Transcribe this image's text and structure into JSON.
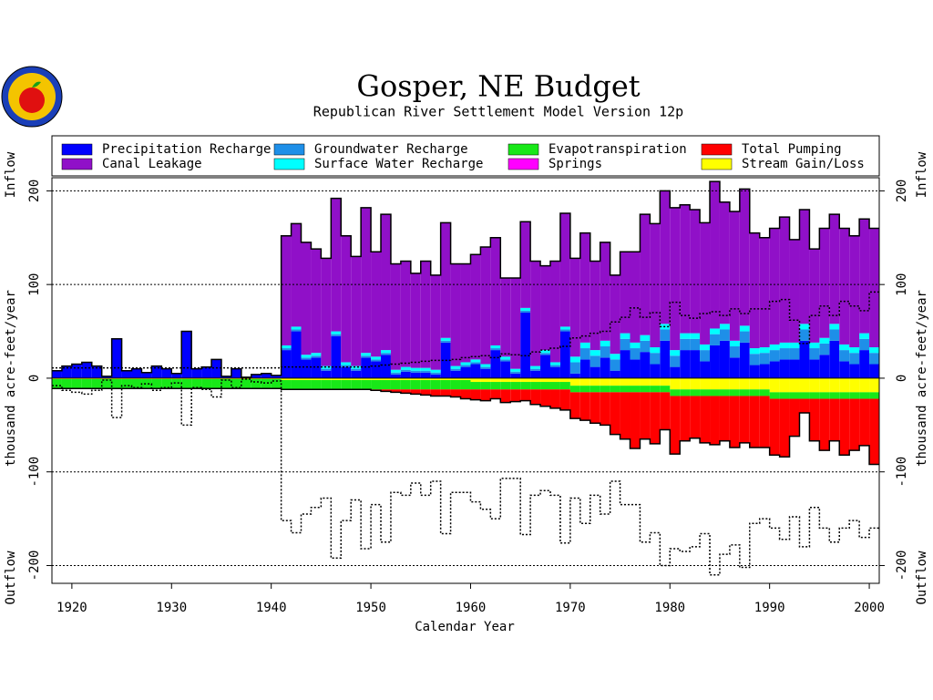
{
  "chart_data": {
    "type": "bar",
    "title": "Gosper, NE Budget",
    "subtitle": "Republican River Settlement Model Version 12p",
    "x_label": "Calendar Year",
    "y_label": "thousand acre-feet/year",
    "inflow_label": "Inflow",
    "outflow_label": "Outflow",
    "x": [
      1918,
      1919,
      1920,
      1921,
      1922,
      1923,
      1924,
      1925,
      1926,
      1927,
      1928,
      1929,
      1930,
      1931,
      1932,
      1933,
      1934,
      1935,
      1936,
      1937,
      1938,
      1939,
      1940,
      1941,
      1942,
      1943,
      1944,
      1945,
      1946,
      1947,
      1948,
      1949,
      1950,
      1951,
      1952,
      1953,
      1954,
      1955,
      1956,
      1957,
      1958,
      1959,
      1960,
      1961,
      1962,
      1963,
      1964,
      1965,
      1966,
      1967,
      1968,
      1969,
      1970,
      1971,
      1972,
      1973,
      1974,
      1975,
      1976,
      1977,
      1978,
      1979,
      1980,
      1981,
      1982,
      1983,
      1984,
      1985,
      1986,
      1987,
      1988,
      1989,
      1990,
      1991,
      1992,
      1993,
      1994,
      1995,
      1996,
      1997,
      1998,
      1999,
      2000
    ],
    "xlim": [
      1918,
      2001
    ],
    "xticks": [
      1920,
      1930,
      1940,
      1950,
      1960,
      1970,
      1980,
      1990,
      2000
    ],
    "ylim": [
      -219,
      214
    ],
    "yticks": [
      -200,
      -100,
      0,
      100,
      200
    ],
    "grid": true,
    "series": [
      {
        "name": "Precipitation Recharge",
        "color": "#0000ff",
        "values": [
          8,
          13,
          15,
          17,
          13,
          2,
          42,
          8,
          10,
          6,
          13,
          10,
          5,
          50,
          10,
          12,
          20,
          2,
          10,
          1,
          4,
          5,
          3,
          30,
          50,
          20,
          22,
          8,
          45,
          12,
          8,
          22,
          18,
          25,
          4,
          7,
          6,
          6,
          4,
          38,
          8,
          12,
          15,
          10,
          30,
          18,
          5,
          70,
          8,
          25,
          12,
          50,
          5,
          20,
          12,
          22,
          8,
          30,
          20,
          28,
          15,
          40,
          12,
          30,
          30,
          18,
          35,
          40,
          22,
          38,
          14,
          15,
          18,
          20,
          20,
          40,
          20,
          25,
          40,
          18,
          15,
          30,
          15
        ]
      },
      {
        "name": "Groundwater Recharge",
        "color": "#1e8fe8",
        "values": [
          0,
          0,
          0,
          0,
          0,
          0,
          0,
          0,
          0,
          0,
          0,
          0,
          0,
          0,
          0,
          0,
          0,
          0,
          0,
          0,
          0,
          0,
          0,
          2,
          2,
          2,
          2,
          2,
          2,
          2,
          2,
          2,
          2,
          2,
          2,
          2,
          2,
          2,
          2,
          2,
          2,
          2,
          2,
          2,
          2,
          2,
          2,
          2,
          2,
          2,
          2,
          2,
          12,
          12,
          12,
          12,
          12,
          12,
          12,
          12,
          12,
          12,
          12,
          12,
          12,
          12,
          12,
          12,
          12,
          12,
          12,
          12,
          12,
          12,
          12,
          12,
          12,
          12,
          12,
          12,
          12,
          12,
          12
        ]
      },
      {
        "name": "Surface Water Recharge",
        "color": "#00ffff",
        "values": [
          0,
          0,
          0,
          0,
          0,
          0,
          0,
          0,
          0,
          0,
          0,
          0,
          0,
          0,
          0,
          0,
          0,
          0,
          0,
          0,
          0,
          0,
          0,
          3,
          3,
          3,
          3,
          3,
          3,
          3,
          3,
          3,
          3,
          3,
          3,
          3,
          3,
          3,
          3,
          3,
          3,
          3,
          3,
          3,
          3,
          3,
          3,
          3,
          3,
          3,
          3,
          3,
          6,
          6,
          6,
          6,
          6,
          6,
          6,
          6,
          6,
          6,
          6,
          6,
          6,
          6,
          6,
          6,
          6,
          6,
          6,
          6,
          6,
          6,
          6,
          6,
          6,
          6,
          6,
          6,
          6,
          6,
          6
        ]
      },
      {
        "name": "Canal Leakage",
        "color": "#9010c8",
        "values": [
          0,
          0,
          0,
          0,
          0,
          0,
          0,
          0,
          0,
          0,
          0,
          0,
          0,
          0,
          0,
          0,
          0,
          0,
          0,
          0,
          0,
          0,
          0,
          117,
          110,
          120,
          111,
          115,
          142,
          135,
          117,
          155,
          112,
          145,
          113,
          113,
          101,
          114,
          101,
          123,
          109,
          105,
          112,
          125,
          115,
          84,
          97,
          92,
          112,
          90,
          108,
          121,
          105,
          117,
          95,
          105,
          84,
          87,
          97,
          129,
          132,
          142,
          152,
          137,
          132,
          130,
          157,
          130,
          138,
          146,
          123,
          117,
          124,
          134,
          110,
          122,
          100,
          117,
          117,
          124,
          119,
          122,
          127
        ]
      },
      {
        "name": "Springs",
        "color": "#ff00ff",
        "values": [
          0,
          0,
          0,
          0,
          0,
          0,
          0,
          0,
          0,
          0,
          0,
          0,
          0,
          0,
          0,
          0,
          0,
          0,
          0,
          0,
          0,
          0,
          0,
          0,
          0,
          0,
          0,
          0,
          0,
          0,
          0,
          0,
          0,
          0,
          0,
          0,
          0,
          0,
          0,
          0,
          0,
          0,
          0,
          0,
          0,
          0,
          0,
          0,
          0,
          0,
          0,
          0,
          0,
          0,
          0,
          0,
          0,
          0,
          0,
          0,
          0,
          0,
          0,
          0,
          0,
          0,
          0,
          0,
          0,
          0,
          0,
          0,
          0,
          0,
          0,
          0,
          0,
          0,
          0,
          0,
          0,
          0,
          0
        ]
      },
      {
        "name": "Stream Gain/Loss",
        "color": "#ffff00",
        "values": [
          -1,
          -1,
          -1,
          -1,
          -1,
          -1,
          -1,
          -1,
          -1,
          -1,
          -1,
          -1,
          -1,
          -1,
          -1,
          -1,
          -1,
          -1,
          -1,
          -1,
          -1,
          -1,
          -1,
          -2,
          -2,
          -2,
          -2,
          -2,
          -2,
          -2,
          -2,
          -2,
          -2,
          -2,
          -2,
          -2,
          -2,
          -2,
          -2,
          -2,
          -2,
          -2,
          -4,
          -4,
          -4,
          -4,
          -4,
          -4,
          -4,
          -4,
          -4,
          -4,
          -8,
          -8,
          -8,
          -8,
          -8,
          -8,
          -8,
          -8,
          -8,
          -8,
          -12,
          -12,
          -12,
          -12,
          -12,
          -12,
          -12,
          -12,
          -12,
          -12,
          -15,
          -15,
          -15,
          -15,
          -15,
          -15,
          -15,
          -15,
          -15,
          -15,
          -15
        ]
      },
      {
        "name": "Evapotranspiration",
        "color": "#18e818",
        "values": [
          -10,
          -10,
          -10,
          -10,
          -10,
          -10,
          -10,
          -10,
          -10,
          -10,
          -10,
          -10,
          -10,
          -10,
          -10,
          -10,
          -10,
          -10,
          -10,
          -10,
          -10,
          -10,
          -10,
          -10,
          -10,
          -10,
          -10,
          -10,
          -10,
          -10,
          -10,
          -10,
          -10,
          -10,
          -10,
          -10,
          -10,
          -10,
          -10,
          -10,
          -10,
          -10,
          -8,
          -8,
          -8,
          -8,
          -8,
          -8,
          -8,
          -8,
          -8,
          -8,
          -7,
          -7,
          -7,
          -7,
          -7,
          -7,
          -7,
          -7,
          -7,
          -7,
          -7,
          -7,
          -7,
          -7,
          -7,
          -7,
          -7,
          -7,
          -7,
          -7,
          -7,
          -7,
          -7,
          -7,
          -7,
          -7,
          -7,
          -7,
          -7,
          -7,
          -7
        ]
      },
      {
        "name": "Total Pumping",
        "color": "#ff0000",
        "values": [
          0,
          0,
          0,
          0,
          0,
          0,
          0,
          0,
          0,
          0,
          0,
          0,
          0,
          0,
          0,
          0,
          0,
          0,
          0,
          0,
          0,
          0,
          0,
          0,
          0,
          0,
          0,
          0,
          0,
          0,
          0,
          0,
          -1,
          -2,
          -3,
          -4,
          -5,
          -6,
          -7,
          -7,
          -8,
          -10,
          -11,
          -12,
          -10,
          -14,
          -13,
          -12,
          -16,
          -18,
          -20,
          -22,
          -28,
          -30,
          -33,
          -35,
          -45,
          -50,
          -60,
          -50,
          -55,
          -40,
          -62,
          -48,
          -45,
          -50,
          -52,
          -48,
          -55,
          -50,
          -55,
          -55,
          -60,
          -62,
          -40,
          -15,
          -45,
          -55,
          -45,
          -60,
          -55,
          -50,
          -70
        ]
      }
    ]
  }
}
